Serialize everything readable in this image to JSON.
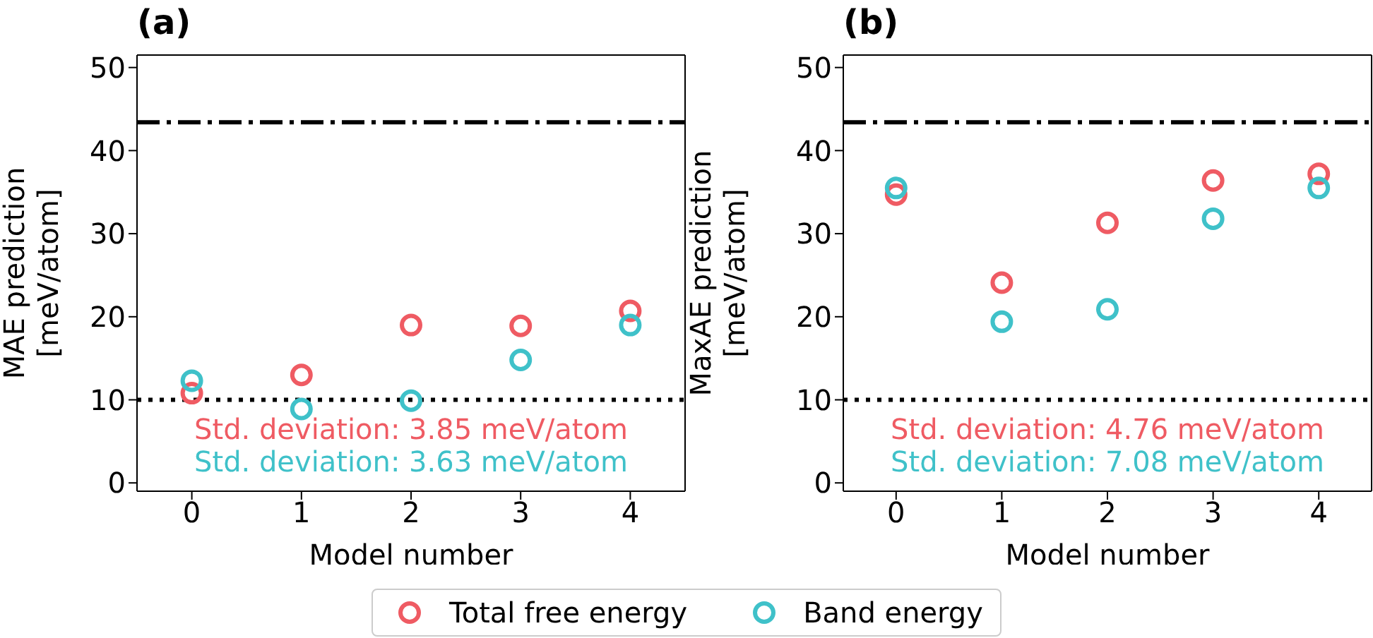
{
  "chart_data": [
    {
      "type": "scatter",
      "title": "(a)",
      "xlabel": "Model number",
      "ylabel": "MAE prediction\n[meV/atom]",
      "x": [
        0,
        1,
        2,
        3,
        4
      ],
      "xlim": [
        -0.5,
        4.5
      ],
      "xticks": [
        0,
        1,
        2,
        3,
        4
      ],
      "ylim": [
        -1,
        51.5
      ],
      "yticks": [
        0,
        10,
        20,
        30,
        40,
        50
      ],
      "marker": "circle",
      "legend": "bottom",
      "grid": false,
      "series": [
        {
          "name": "Total free energy",
          "color": "#ef5b63",
          "values": [
            10.8,
            13.0,
            19.0,
            18.9,
            20.7
          ]
        },
        {
          "name": "Band energy",
          "color": "#3fc1c9",
          "values": [
            12.3,
            8.9,
            9.9,
            14.8,
            19.0
          ]
        }
      ],
      "ref_lines": [
        {
          "axis": "y",
          "value": 43.4,
          "color": "#000000",
          "line_style": "dashed"
        },
        {
          "axis": "y",
          "value": 10,
          "color": "#000000",
          "line_style": "dotted"
        }
      ],
      "annotations": [
        "Std. deviation: 3.85 meV/atom",
        "Std. deviation: 3.63 meV/atom"
      ]
    },
    {
      "type": "scatter",
      "title": "(b)",
      "xlabel": "Model number",
      "ylabel": "MaxAE prediction\n[meV/atom]",
      "x": [
        0,
        1,
        2,
        3,
        4
      ],
      "xlim": [
        -0.5,
        4.5
      ],
      "xticks": [
        0,
        1,
        2,
        3,
        4
      ],
      "ylim": [
        -1,
        51.5
      ],
      "yticks": [
        0,
        10,
        20,
        30,
        40,
        50
      ],
      "marker": "circle",
      "grid": false,
      "series": [
        {
          "color": "#ef5b63",
          "values": [
            34.7,
            24.1,
            31.3,
            36.4,
            37.2
          ]
        },
        {
          "color": "#3fc1c9",
          "values": [
            35.5,
            19.4,
            20.9,
            31.8,
            35.5
          ]
        }
      ],
      "ref_lines": [
        {
          "axis": "y",
          "value": 43.4,
          "color": "#000000",
          "line_style": "dashed"
        },
        {
          "axis": "y",
          "value": 10,
          "color": "#000000",
          "line_style": "dotted"
        }
      ],
      "annotations": [
        "Std. deviation: 4.76 meV/atom",
        "Std. deviation: 7.08 meV/atom"
      ]
    }
  ]
}
